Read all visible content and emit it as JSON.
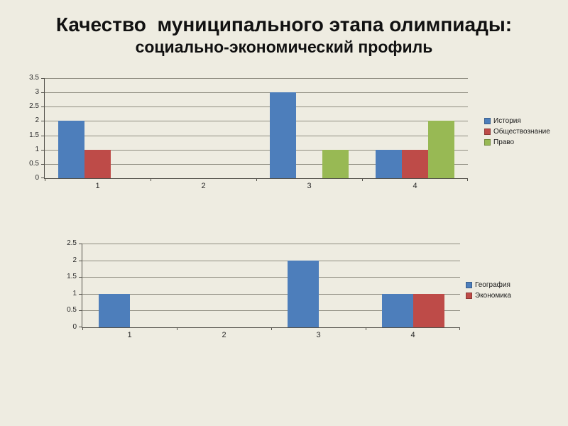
{
  "title": {
    "line1": "Качество  муниципального этапа олимпиады:",
    "line2": "социально-экономический профиль"
  },
  "colors": {
    "background": "#EEECE1",
    "grid": "#8F8D81",
    "axis": "#53514A",
    "series_blue": "#4D7EBB",
    "series_red": "#BE4B48",
    "series_green": "#98B954"
  },
  "chart_data": [
    {
      "type": "bar",
      "title": "",
      "xlabel": "",
      "ylabel": "",
      "categories": [
        "1",
        "2",
        "3",
        "4"
      ],
      "series": [
        {
          "name": "История",
          "color": "#4D7EBB",
          "values": [
            2,
            0,
            3,
            1
          ]
        },
        {
          "name": "Обществознание",
          "color": "#BE4B48",
          "values": [
            1,
            0,
            0,
            1
          ]
        },
        {
          "name": "Право",
          "color": "#98B954",
          "values": [
            0,
            0,
            1,
            2
          ]
        }
      ],
      "ylim": [
        0,
        3.5
      ],
      "yticks": [
        "0",
        "0.5",
        "1",
        "1.5",
        "2",
        "2.5",
        "3",
        "3.5"
      ],
      "grid": true,
      "legend_position": "right"
    },
    {
      "type": "bar",
      "title": "",
      "xlabel": "",
      "ylabel": "",
      "categories": [
        "1",
        "2",
        "3",
        "4"
      ],
      "series": [
        {
          "name": "География",
          "color": "#4D7EBB",
          "values": [
            1,
            0,
            2,
            1
          ]
        },
        {
          "name": "Экономика",
          "color": "#BE4B48",
          "values": [
            0,
            0,
            0,
            1
          ]
        }
      ],
      "ylim": [
        0,
        2.5
      ],
      "yticks": [
        "0",
        "0.5",
        "1",
        "1.5",
        "2",
        "2.5"
      ],
      "grid": true,
      "legend_position": "right"
    }
  ]
}
